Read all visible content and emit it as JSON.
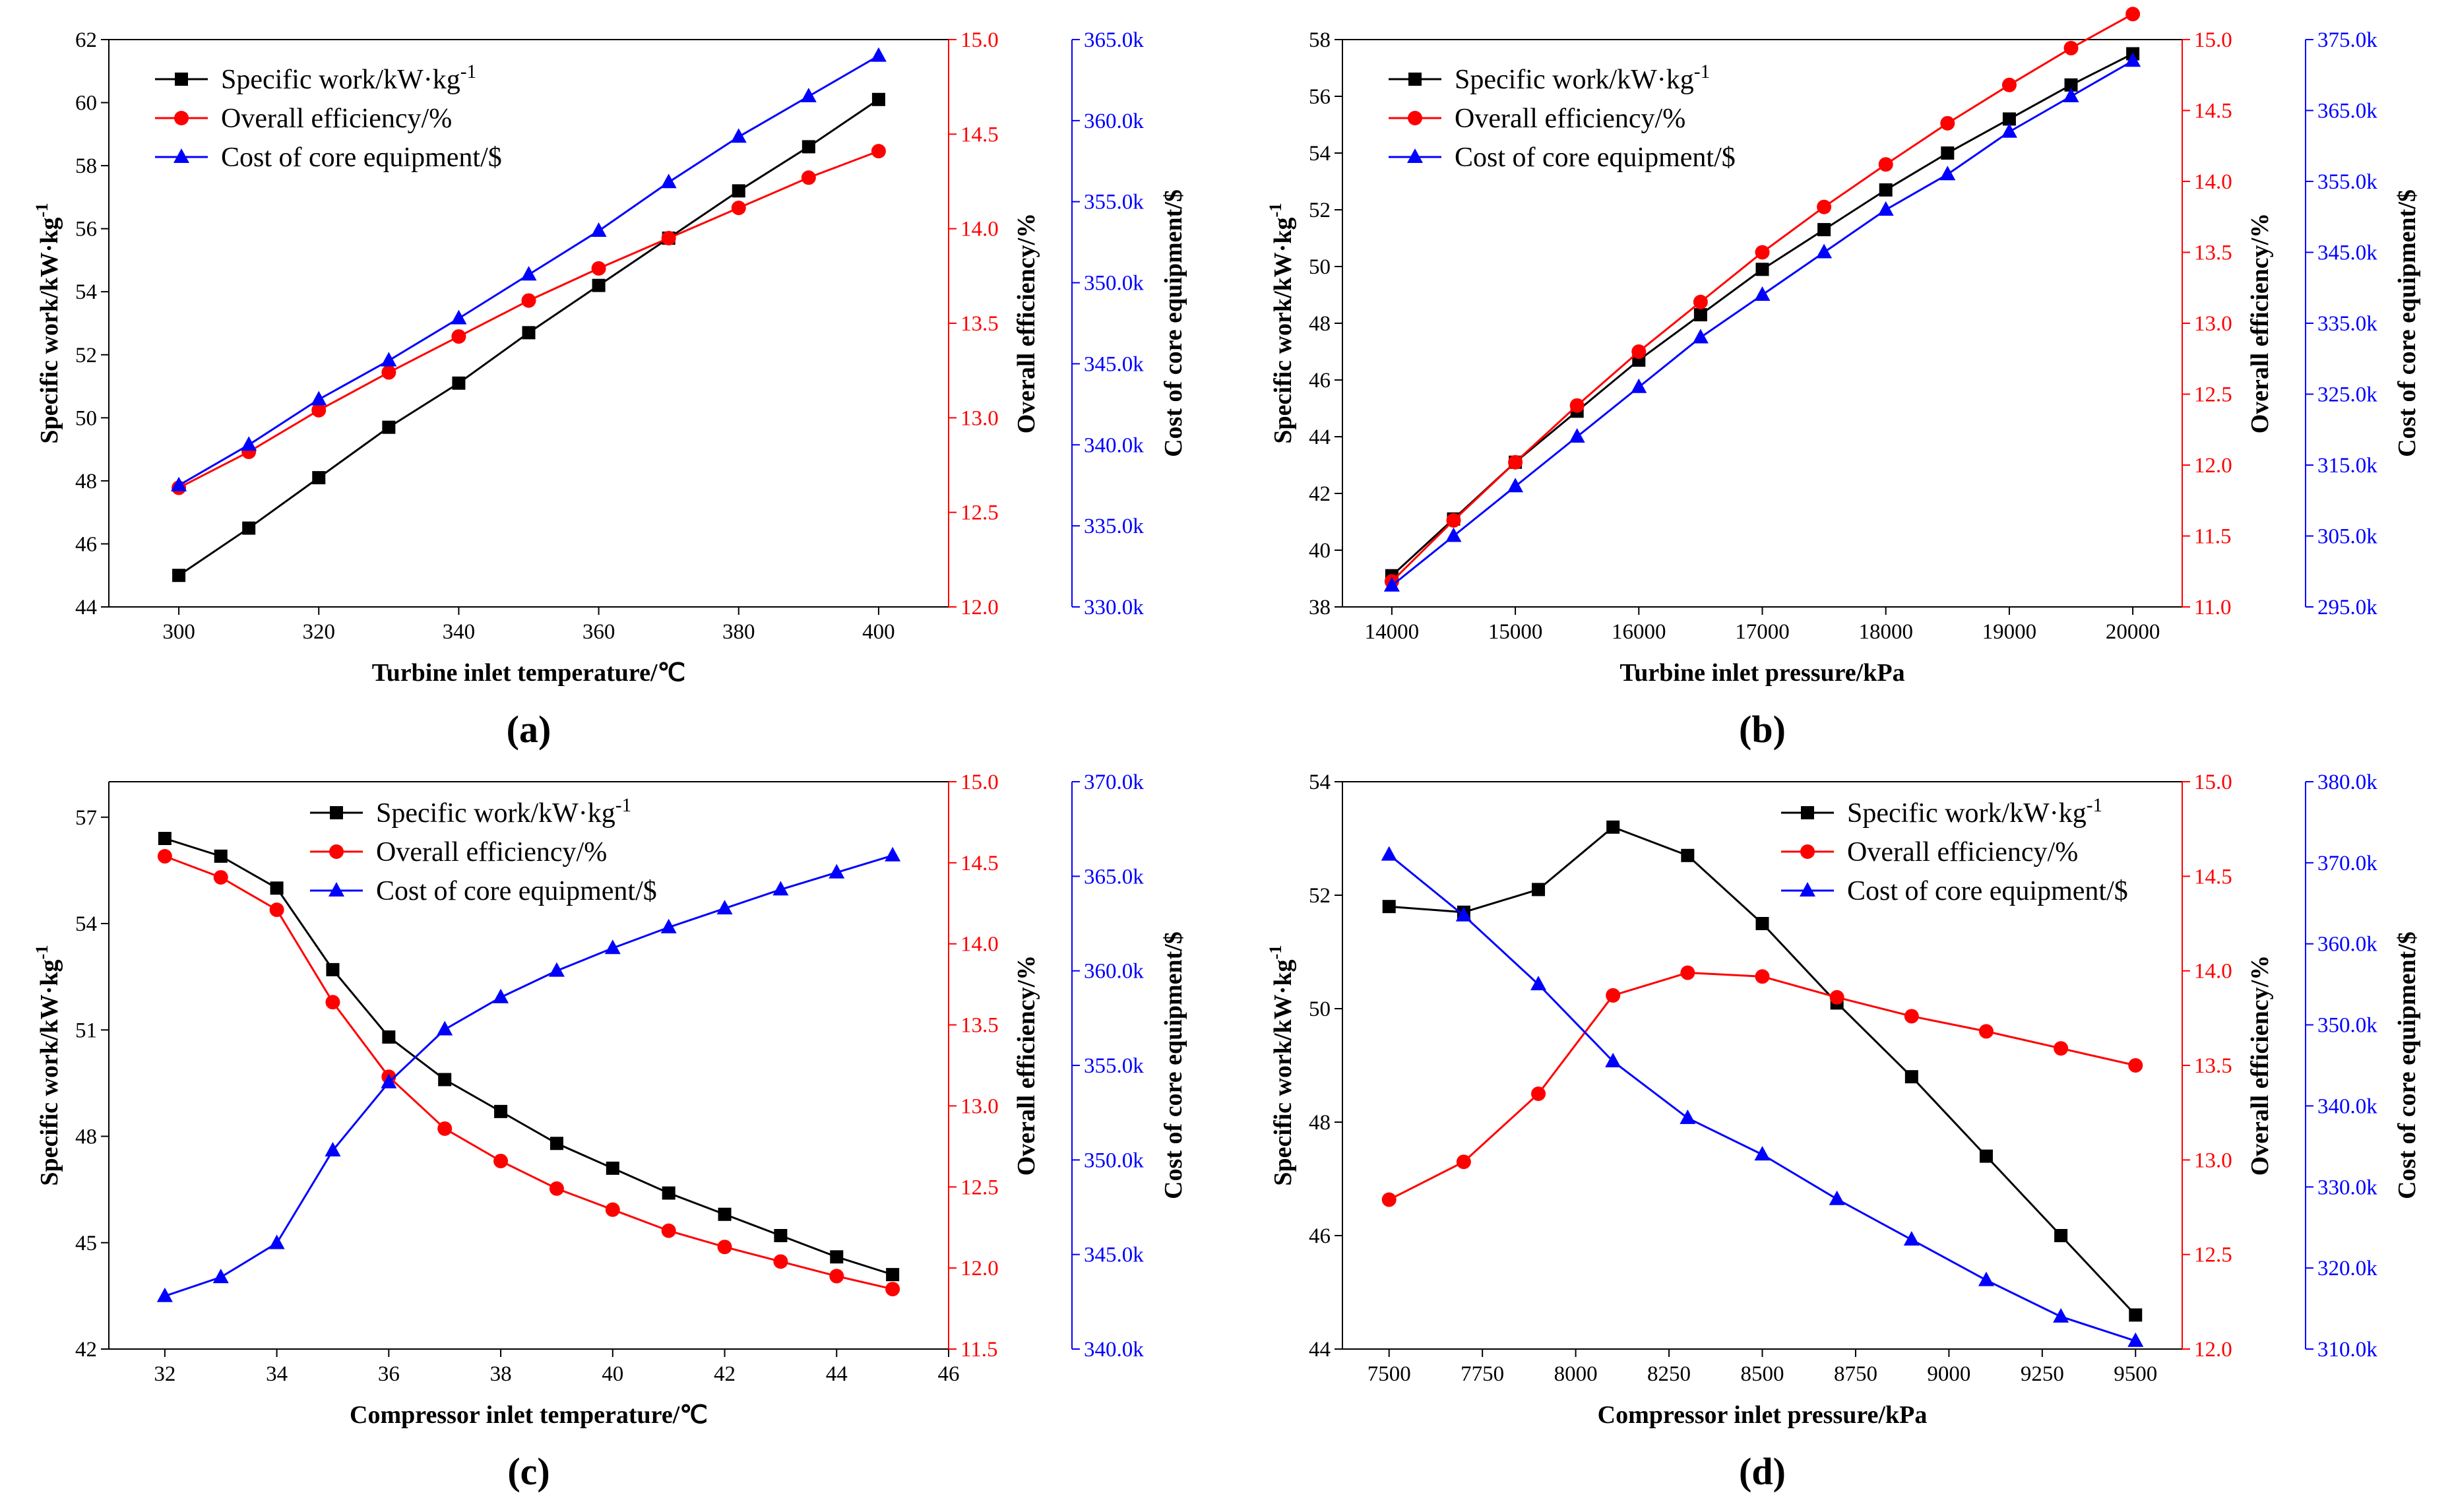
{
  "figure": {
    "colors": {
      "black": "#000000",
      "red": "#ff0000",
      "blue": "#0000ff"
    },
    "markers": {
      "work": "square",
      "efficiency": "circle",
      "cost": "triangle"
    }
  },
  "chart_data": [
    {
      "type": "line",
      "panel_label": "(a)",
      "xlabel": "Turbine inlet temperature/℃",
      "x": [
        300,
        310,
        320,
        330,
        340,
        350,
        360,
        370,
        380,
        390,
        400
      ],
      "xlim": [
        290,
        410
      ],
      "xticks": [
        "300",
        "320",
        "340",
        "360",
        "380",
        "400"
      ],
      "legend_position": "top-left",
      "axes": {
        "left": {
          "label": "Specific work/kW·kg⁻¹",
          "color": "#000000",
          "lim": [
            44,
            62
          ],
          "ticks": [
            "44",
            "46",
            "48",
            "50",
            "52",
            "54",
            "56",
            "58",
            "60",
            "62"
          ]
        },
        "right1": {
          "label": "Overall efficiency/%",
          "color": "#ff0000",
          "lim": [
            12.0,
            15.0
          ],
          "ticks": [
            "12.0",
            "12.5",
            "13.0",
            "13.5",
            "14.0",
            "14.5",
            "15.0"
          ]
        },
        "right2": {
          "label": "Cost of core equipment/$",
          "color": "#0000ff",
          "lim": [
            330,
            365
          ],
          "ticks": [
            "330.0k",
            "335.0k",
            "340.0k",
            "345.0k",
            "350.0k",
            "355.0k",
            "360.0k",
            "365.0k"
          ]
        }
      },
      "series": [
        {
          "name": "Specific work/kW·kg⁻¹",
          "axis": "left",
          "color": "#000000",
          "marker": "square",
          "values": [
            45.0,
            46.5,
            48.1,
            49.7,
            51.1,
            52.7,
            54.2,
            55.7,
            57.2,
            58.6,
            60.1
          ]
        },
        {
          "name": "Overall efficiency/%",
          "axis": "right1",
          "color": "#ff0000",
          "marker": "circle",
          "values": [
            12.63,
            12.82,
            13.04,
            13.24,
            13.43,
            13.62,
            13.79,
            13.95,
            14.11,
            14.27,
            14.41
          ]
        },
        {
          "name": "Cost of core equipment/$",
          "axis": "right2",
          "color": "#0000ff",
          "marker": "triangle",
          "values": [
            337.5,
            340.0,
            342.8,
            345.2,
            347.8,
            350.5,
            353.2,
            356.2,
            359.0,
            361.5,
            364.0
          ]
        }
      ]
    },
    {
      "type": "line",
      "panel_label": "(b)",
      "xlabel": "Turbine inlet pressure/kPa",
      "x": [
        14000,
        14500,
        15000,
        15500,
        16000,
        16500,
        17000,
        17500,
        18000,
        18500,
        19000,
        19500,
        20000
      ],
      "xlim": [
        13600,
        20400
      ],
      "xticks": [
        "14000",
        "15000",
        "16000",
        "17000",
        "18000",
        "19000",
        "20000"
      ],
      "legend_position": "top-left",
      "axes": {
        "left": {
          "label": "Specific work/kW·kg⁻¹",
          "color": "#000000",
          "lim": [
            38,
            58
          ],
          "ticks": [
            "38",
            "40",
            "42",
            "44",
            "46",
            "48",
            "50",
            "52",
            "54",
            "56",
            "58"
          ]
        },
        "right1": {
          "label": "Overall efficiency/%",
          "color": "#ff0000",
          "lim": [
            11.0,
            15.0
          ],
          "ticks": [
            "11.0",
            "11.5",
            "12.0",
            "12.5",
            "13.0",
            "13.5",
            "14.0",
            "14.5",
            "15.0"
          ]
        },
        "right2": {
          "label": "Cost of core equipment/$",
          "color": "#0000ff",
          "lim": [
            295,
            375
          ],
          "ticks": [
            "295.0k",
            "305.0k",
            "315.0k",
            "325.0k",
            "335.0k",
            "345.0k",
            "355.0k",
            "365.0k",
            "375.0k"
          ]
        }
      },
      "series": [
        {
          "name": "Specific work/kW·kg⁻¹",
          "axis": "left",
          "color": "#000000",
          "marker": "square",
          "values": [
            39.1,
            41.1,
            43.1,
            44.9,
            46.7,
            48.3,
            49.9,
            51.3,
            52.7,
            54.0,
            55.2,
            56.4,
            57.5
          ]
        },
        {
          "name": "Overall efficiency/%",
          "axis": "right1",
          "color": "#ff0000",
          "marker": "circle",
          "values": [
            11.18,
            11.61,
            12.02,
            12.42,
            12.8,
            13.15,
            13.5,
            13.82,
            14.12,
            14.41,
            14.68,
            14.94,
            15.18
          ]
        },
        {
          "name": "Cost of core equipment/$",
          "axis": "right2",
          "color": "#0000ff",
          "marker": "triangle",
          "values": [
            298,
            305,
            312,
            319,
            326,
            333,
            339,
            345,
            351,
            356,
            362,
            367,
            372
          ]
        }
      ]
    },
    {
      "type": "line",
      "panel_label": "(c)",
      "xlabel": "Compressor inlet temperature/℃",
      "x": [
        32,
        33,
        34,
        35,
        36,
        37,
        38,
        39,
        40,
        41,
        42,
        43,
        44,
        45
      ],
      "xlim": [
        31,
        46
      ],
      "xticks": [
        "32",
        "34",
        "36",
        "38",
        "40",
        "42",
        "44",
        "46"
      ],
      "legend_position": "top-right",
      "axes": {
        "left": {
          "label": "Specific work/kW·kg⁻¹",
          "color": "#000000",
          "lim": [
            42,
            58
          ],
          "ticks": [
            "42",
            "45",
            "48",
            "51",
            "54",
            "57"
          ]
        },
        "right1": {
          "label": "Overall efficiency/%",
          "color": "#ff0000",
          "lim": [
            11.5,
            15.0
          ],
          "ticks": [
            "11.5",
            "12.0",
            "12.5",
            "13.0",
            "13.5",
            "14.0",
            "14.5",
            "15.0"
          ]
        },
        "right2": {
          "label": "Cost of core equipment/$",
          "color": "#0000ff",
          "lim": [
            340,
            370
          ],
          "ticks": [
            "340.0k",
            "345.0k",
            "350.0k",
            "355.0k",
            "360.0k",
            "365.0k",
            "370.0k"
          ]
        }
      },
      "series": [
        {
          "name": "Specific work/kW·kg⁻¹",
          "axis": "left",
          "color": "#000000",
          "marker": "square",
          "values": [
            56.4,
            55.9,
            55.0,
            52.7,
            50.8,
            49.6,
            48.7,
            47.8,
            47.1,
            46.4,
            45.8,
            45.2,
            44.6,
            44.1
          ]
        },
        {
          "name": "Overall efficiency/%",
          "axis": "right1",
          "color": "#ff0000",
          "marker": "circle",
          "values": [
            14.54,
            14.41,
            14.21,
            13.64,
            13.18,
            12.86,
            12.66,
            12.49,
            12.36,
            12.23,
            12.13,
            12.04,
            11.95,
            11.87
          ]
        },
        {
          "name": "Cost of core equipment/$",
          "axis": "right2",
          "color": "#0000ff",
          "marker": "triangle",
          "values": [
            342.8,
            343.8,
            345.6,
            350.5,
            354.1,
            356.9,
            358.6,
            360.0,
            361.2,
            362.3,
            363.3,
            364.3,
            365.2,
            366.1
          ]
        }
      ]
    },
    {
      "type": "line",
      "panel_label": "(d)",
      "xlabel": "Compressor inlet pressure/kPa",
      "x": [
        7500,
        7700,
        7900,
        8100,
        8300,
        8500,
        8700,
        8900,
        9100,
        9300,
        9500
      ],
      "xlim": [
        7375,
        9625
      ],
      "xticks": [
        "7500",
        "7750",
        "8000",
        "8250",
        "8500",
        "8750",
        "9000",
        "9250",
        "9500"
      ],
      "legend_position": "top-right",
      "axes": {
        "left": {
          "label": "Specific work/kW·kg⁻¹",
          "color": "#000000",
          "lim": [
            44,
            54
          ],
          "ticks": [
            "44",
            "46",
            "48",
            "50",
            "52",
            "54"
          ]
        },
        "right1": {
          "label": "Overall efficiency/%",
          "color": "#ff0000",
          "lim": [
            12.0,
            15.0
          ],
          "ticks": [
            "12.0",
            "12.5",
            "13.0",
            "13.5",
            "14.0",
            "14.5",
            "15.0"
          ]
        },
        "right2": {
          "label": "Cost of core equipment/$",
          "color": "#0000ff",
          "lim": [
            310,
            380
          ],
          "ticks": [
            "310.0k",
            "320.0k",
            "330.0k",
            "340.0k",
            "350.0k",
            "360.0k",
            "370.0k",
            "380.0k"
          ]
        }
      },
      "series": [
        {
          "name": "Specific work/kW·kg⁻¹",
          "axis": "left",
          "color": "#000000",
          "marker": "square",
          "values": [
            51.8,
            51.7,
            52.1,
            53.2,
            52.7,
            51.5,
            50.1,
            48.8,
            47.4,
            46.0,
            44.6
          ]
        },
        {
          "name": "Overall efficiency/%",
          "axis": "right1",
          "color": "#ff0000",
          "marker": "circle",
          "values": [
            12.79,
            12.99,
            13.35,
            13.87,
            13.99,
            13.97,
            13.86,
            13.76,
            13.68,
            13.59,
            13.5
          ]
        },
        {
          "name": "Cost of core equipment/$",
          "axis": "right2",
          "color": "#0000ff",
          "marker": "triangle",
          "values": [
            371.0,
            363.5,
            355.0,
            345.5,
            338.5,
            334.0,
            328.5,
            323.5,
            318.5,
            314.0,
            311.0
          ]
        }
      ]
    }
  ]
}
